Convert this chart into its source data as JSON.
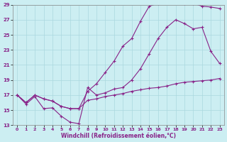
{
  "xlabel": "Windchill (Refroidissement éolien,°C)",
  "bg_color": "#cceef2",
  "grid_color": "#aad8de",
  "line_color": "#882288",
  "xlim": [
    -0.5,
    23.5
  ],
  "ylim": [
    13,
    29
  ],
  "xticks": [
    0,
    1,
    2,
    3,
    4,
    5,
    6,
    7,
    8,
    9,
    10,
    11,
    12,
    13,
    14,
    15,
    16,
    17,
    18,
    19,
    20,
    21,
    22,
    23
  ],
  "yticks": [
    13,
    15,
    17,
    19,
    21,
    23,
    25,
    27,
    29
  ],
  "line1_x": [
    0,
    1,
    2,
    3,
    4,
    5,
    6,
    7,
    8,
    9,
    10,
    11,
    12,
    13,
    14,
    15,
    16,
    17,
    18,
    19,
    20,
    21,
    22,
    23
  ],
  "line1_y": [
    17.0,
    15.8,
    16.8,
    15.2,
    15.3,
    14.2,
    13.4,
    13.2,
    18.0,
    17.0,
    17.3,
    17.8,
    18.0,
    19.0,
    20.5,
    22.5,
    24.5,
    26.0,
    27.0,
    26.5,
    25.8,
    26.0,
    22.8,
    21.2
  ],
  "line2_x": [
    0,
    1,
    2,
    3,
    4,
    5,
    6,
    7,
    8,
    9,
    10,
    11,
    12,
    13,
    14,
    15,
    16,
    17,
    18,
    19,
    20,
    21,
    22,
    23
  ],
  "line2_y": [
    17.0,
    16.0,
    17.0,
    16.5,
    16.2,
    15.5,
    15.2,
    15.2,
    17.5,
    18.5,
    20.0,
    21.5,
    23.5,
    24.5,
    26.8,
    28.8,
    29.2,
    29.3,
    29.3,
    29.2,
    29.2,
    28.8,
    28.7,
    28.5
  ],
  "line3_x": [
    0,
    1,
    2,
    3,
    4,
    5,
    6,
    7,
    8,
    9,
    10,
    11,
    12,
    13,
    14,
    15,
    16,
    17,
    18,
    19,
    20,
    21,
    22,
    23
  ],
  "line3_y": [
    17.0,
    16.0,
    17.0,
    16.5,
    16.2,
    15.5,
    15.2,
    15.2,
    16.3,
    16.5,
    16.8,
    17.0,
    17.2,
    17.5,
    17.7,
    17.9,
    18.0,
    18.2,
    18.5,
    18.7,
    18.8,
    18.9,
    19.0,
    19.2
  ]
}
